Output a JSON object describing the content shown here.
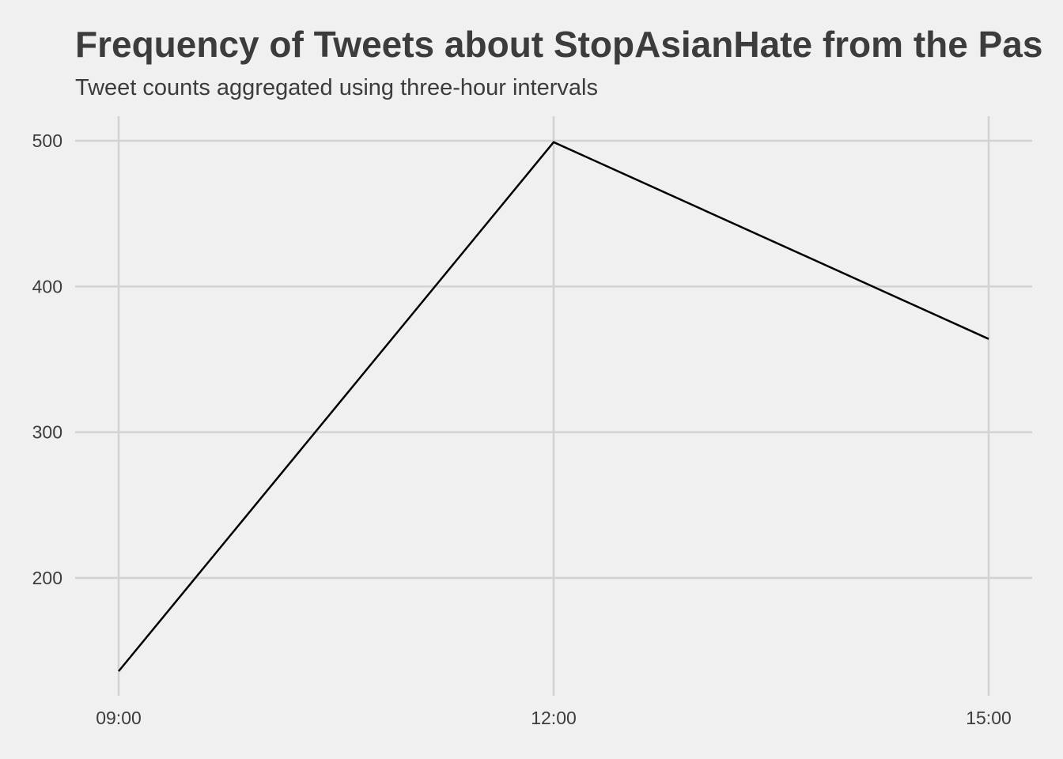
{
  "chart_data": {
    "type": "line",
    "title": "Frequency of Tweets about StopAsianHate from the Pas",
    "subtitle": "Tweet counts aggregated using three-hour intervals",
    "xlabel": "",
    "ylabel": "",
    "x": [
      "09:00",
      "12:00",
      "15:00"
    ],
    "series": [
      {
        "values": [
          136,
          499,
          364
        ]
      }
    ],
    "xlim": [
      "09:00",
      "15:00"
    ],
    "ylim": [
      119,
      517
    ],
    "yticks": [
      200,
      300,
      400,
      500
    ],
    "xticks": [
      "09:00",
      "12:00",
      "15:00"
    ],
    "grid": true,
    "legend": "none",
    "colors": {
      "background": "#f0f0f0",
      "grid": "#d2d2d2",
      "line": "#000000",
      "text": "#3c3c3c"
    }
  }
}
